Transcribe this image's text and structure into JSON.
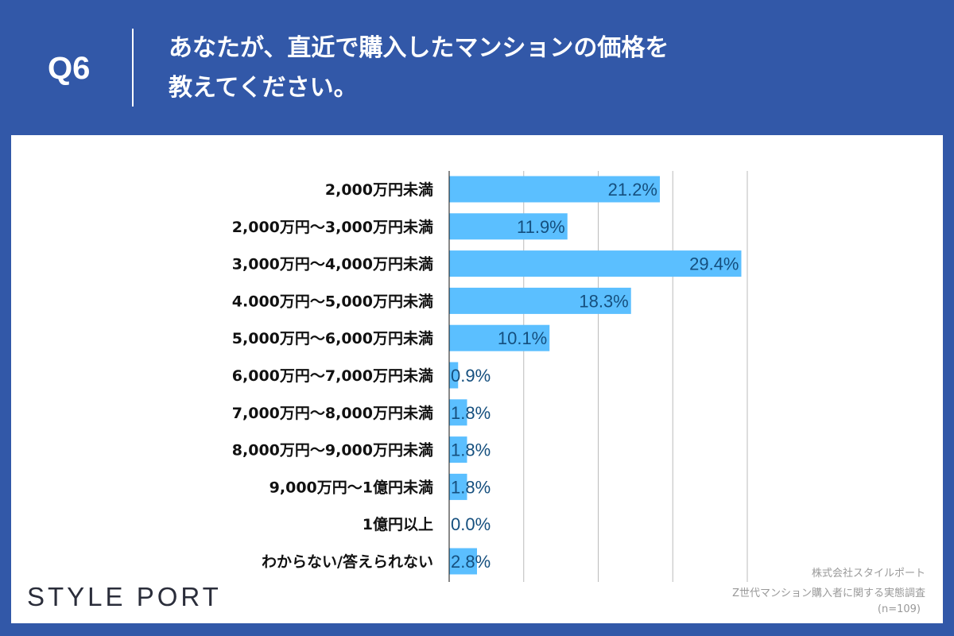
{
  "header": {
    "question_no": "Q6",
    "title_line1": "あなたが、直近で購入したマンションの価格を",
    "title_line2": "教えてください。"
  },
  "colors": {
    "background": "#3258a8",
    "bar": "#5bbfff",
    "value_label": "#154f7e"
  },
  "chart_data": {
    "type": "bar",
    "orientation": "horizontal",
    "categories": [
      "2,000万円未満",
      "2,000万円〜3,000万円未満",
      "3,000万円〜4,000万円未満",
      "4.000万円〜5,000万円未満",
      "5,000万円〜6,000万円未満",
      "6,000万円〜7,000万円未満",
      "7,000万円〜8,000万円未満",
      "8,000万円〜9,000万円未満",
      "9,000万円〜1億円未満",
      "1億円以上",
      "わからない/答えられない"
    ],
    "values": [
      21.2,
      11.9,
      29.4,
      18.3,
      10.1,
      0.9,
      1.8,
      1.8,
      1.8,
      0.0,
      2.8
    ],
    "value_labels": [
      "21.2%",
      "11.9%",
      "29.4%",
      "18.3%",
      "10.1%",
      "0.9%",
      "1.8%",
      "1.8%",
      "1.8%",
      "0.0%",
      "2.8%"
    ],
    "xlim": [
      0,
      30
    ],
    "grid": true
  },
  "footer": {
    "logo": "STYLE PORT",
    "source_line1": "株式会社スタイルポート",
    "source_line2": "Z世代マンション購入者に関する実態調査",
    "sample": "(n=109)"
  }
}
